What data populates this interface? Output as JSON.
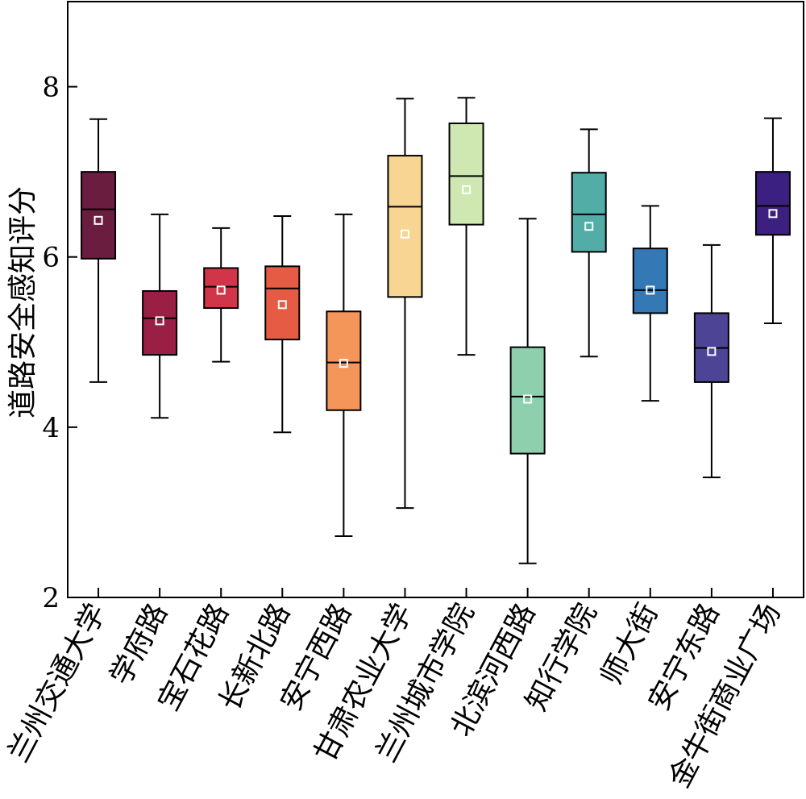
{
  "chart_data": {
    "type": "box",
    "ylabel": "道路安全感知评分",
    "xlabel": "",
    "ylim": [
      2,
      9
    ],
    "yticks": [
      2,
      4,
      6,
      8
    ],
    "grid": false,
    "legend": "none",
    "mean_marker": "white-square",
    "categories": [
      "兰州交通大学",
      "学府路",
      "宝石花路",
      "长新北路",
      "安宁西路",
      "甘肃农业大学",
      "兰州城市学院",
      "北滨河西路",
      "知行学院",
      "师大街",
      "安宁东路",
      "金牛街商业广场"
    ],
    "boxes": [
      {
        "whisker_low": 4.53,
        "q1": 5.98,
        "median": 6.56,
        "q3": 7.0,
        "whisker_high": 7.62,
        "mean": 6.43,
        "color": "#6b1d3f"
      },
      {
        "whisker_low": 4.11,
        "q1": 4.85,
        "median": 5.28,
        "q3": 5.6,
        "whisker_high": 6.5,
        "mean": 5.25,
        "color": "#9a1f44"
      },
      {
        "whisker_low": 4.77,
        "q1": 5.4,
        "median": 5.65,
        "q3": 5.87,
        "whisker_high": 6.34,
        "mean": 5.61,
        "color": "#d0354a"
      },
      {
        "whisker_low": 3.94,
        "q1": 5.03,
        "median": 5.63,
        "q3": 5.89,
        "whisker_high": 6.48,
        "mean": 5.44,
        "color": "#e55b43"
      },
      {
        "whisker_low": 2.72,
        "q1": 4.2,
        "median": 4.76,
        "q3": 5.36,
        "whisker_high": 6.5,
        "mean": 4.75,
        "color": "#f4965a"
      },
      {
        "whisker_low": 3.05,
        "q1": 5.53,
        "median": 6.59,
        "q3": 7.19,
        "whisker_high": 7.86,
        "mean": 6.27,
        "color": "#f8d592"
      },
      {
        "whisker_low": 4.85,
        "q1": 6.38,
        "median": 6.95,
        "q3": 7.57,
        "whisker_high": 7.87,
        "mean": 6.79,
        "color": "#cfe8b1"
      },
      {
        "whisker_low": 2.4,
        "q1": 3.69,
        "median": 4.36,
        "q3": 4.94,
        "whisker_high": 6.45,
        "mean": 4.33,
        "color": "#8ecfad"
      },
      {
        "whisker_low": 4.83,
        "q1": 6.06,
        "median": 6.5,
        "q3": 6.99,
        "whisker_high": 7.5,
        "mean": 6.36,
        "color": "#51ada6"
      },
      {
        "whisker_low": 4.31,
        "q1": 5.34,
        "median": 5.61,
        "q3": 6.1,
        "whisker_high": 6.6,
        "mean": 5.61,
        "color": "#3478b6"
      },
      {
        "whisker_low": 3.41,
        "q1": 4.53,
        "median": 4.93,
        "q3": 5.34,
        "whisker_high": 6.14,
        "mean": 4.89,
        "color": "#4e4496"
      },
      {
        "whisker_low": 5.22,
        "q1": 6.26,
        "median": 6.6,
        "q3": 7.0,
        "whisker_high": 7.63,
        "mean": 6.51,
        "color": "#3b2081"
      }
    ]
  }
}
